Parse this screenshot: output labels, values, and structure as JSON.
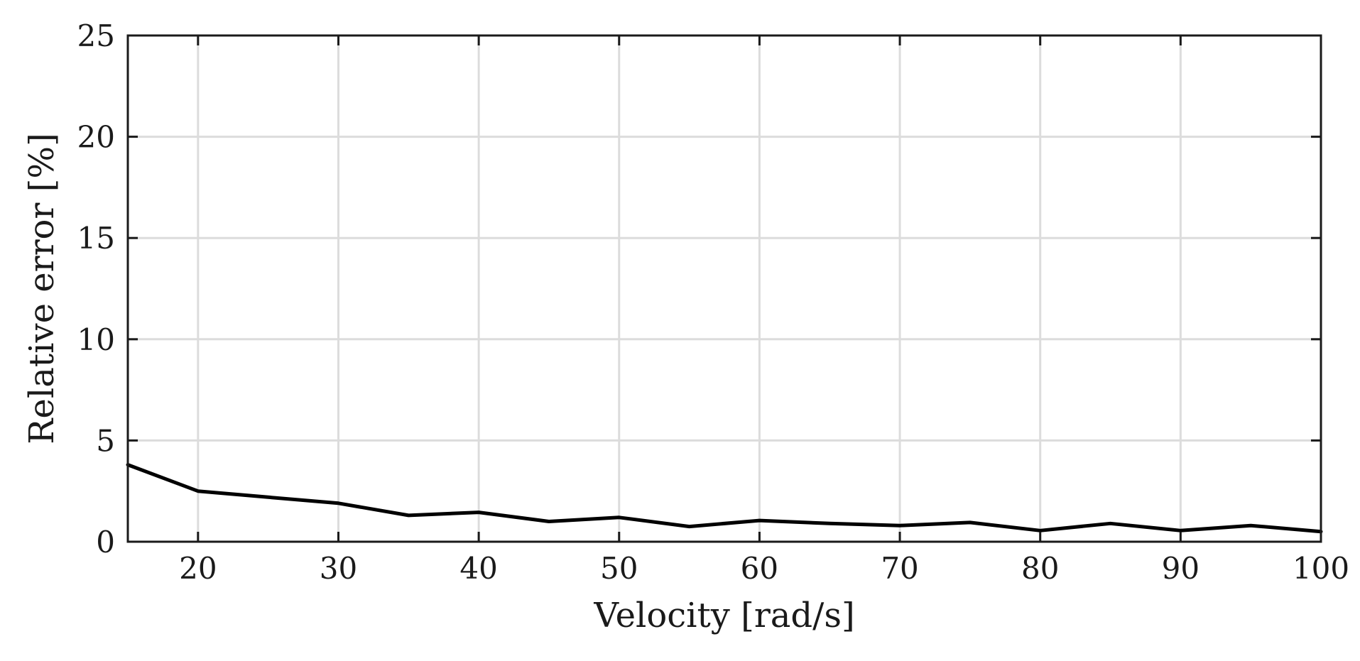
{
  "chart_data": {
    "type": "line",
    "title": "",
    "xlabel": "Velocity [rad/s]",
    "ylabel": "Relative error [%]",
    "xlim": [
      15,
      100
    ],
    "ylim": [
      0,
      25
    ],
    "xticks": [
      20,
      30,
      40,
      50,
      60,
      70,
      80,
      90,
      100
    ],
    "yticks": [
      0,
      5,
      10,
      15,
      20,
      25
    ],
    "grid": true,
    "series": [
      {
        "color": "#000000",
        "x": [
          15,
          20,
          25,
          30,
          35,
          40,
          45,
          50,
          55,
          60,
          65,
          70,
          75,
          80,
          85,
          90,
          95,
          100
        ],
        "y": [
          3.8,
          2.5,
          2.2,
          1.9,
          1.3,
          1.45,
          1.0,
          1.2,
          0.75,
          1.05,
          0.9,
          0.8,
          0.95,
          0.55,
          0.9,
          0.55,
          0.8,
          0.5
        ]
      }
    ]
  }
}
